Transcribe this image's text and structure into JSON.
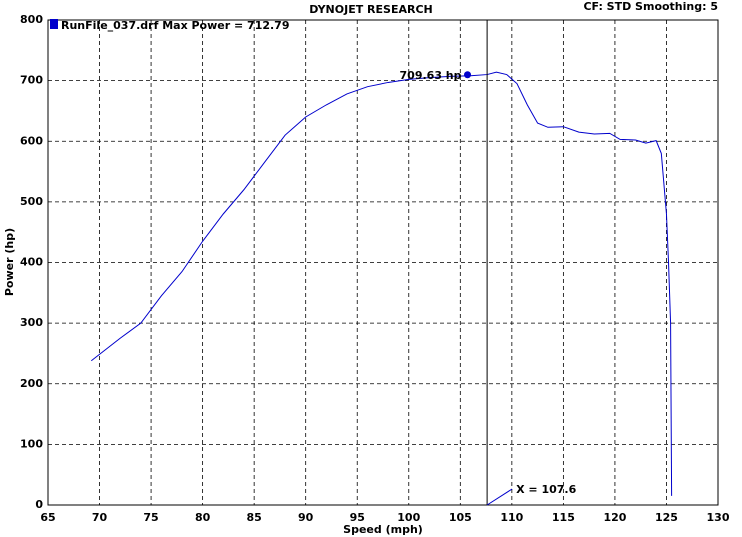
{
  "chart_data": {
    "type": "line",
    "title": "DYNOJET RESEARCH",
    "subtitle": "CF: STD  Smoothing: 5",
    "x_label": "Speed (mph)",
    "y_label": "Power (hp)",
    "x": [
      69.2,
      72,
      74,
      76,
      78,
      80,
      82,
      84,
      86,
      88,
      90,
      92,
      94,
      96,
      98,
      100,
      102,
      104,
      106,
      107.6,
      108.5,
      109.5,
      110.5,
      111.5,
      112.5,
      113.5,
      115,
      116.5,
      118,
      119.5,
      120.5,
      122,
      123,
      124,
      124.5,
      125,
      125.2,
      125.4,
      125.5
    ],
    "series": [
      {
        "name": "RunFile_037.drf Max Power = 712.79",
        "color": "#0000cc",
        "values": [
          238,
          275,
          300,
          345,
          385,
          435,
          480,
          520,
          565,
          610,
          640,
          660,
          678,
          690,
          697,
          702,
          705,
          707,
          708,
          710,
          714,
          710,
          695,
          660,
          630,
          623,
          624,
          615,
          612,
          613,
          603,
          602,
          597,
          601,
          580,
          480,
          400,
          300,
          15
        ]
      }
    ],
    "xlim": [
      65,
      130
    ],
    "xticks": [
      65,
      70,
      75,
      80,
      85,
      90,
      95,
      100,
      105,
      110,
      115,
      120,
      125,
      130
    ],
    "ylim": [
      0,
      800
    ],
    "yticks": [
      0,
      100,
      200,
      300,
      400,
      500,
      600,
      700,
      800
    ],
    "grid": true,
    "marker": {
      "x": 105.7,
      "y": 709.63,
      "label": "709.63 hp"
    },
    "cursor": {
      "x": 107.6,
      "label": "X = 107.6"
    }
  }
}
